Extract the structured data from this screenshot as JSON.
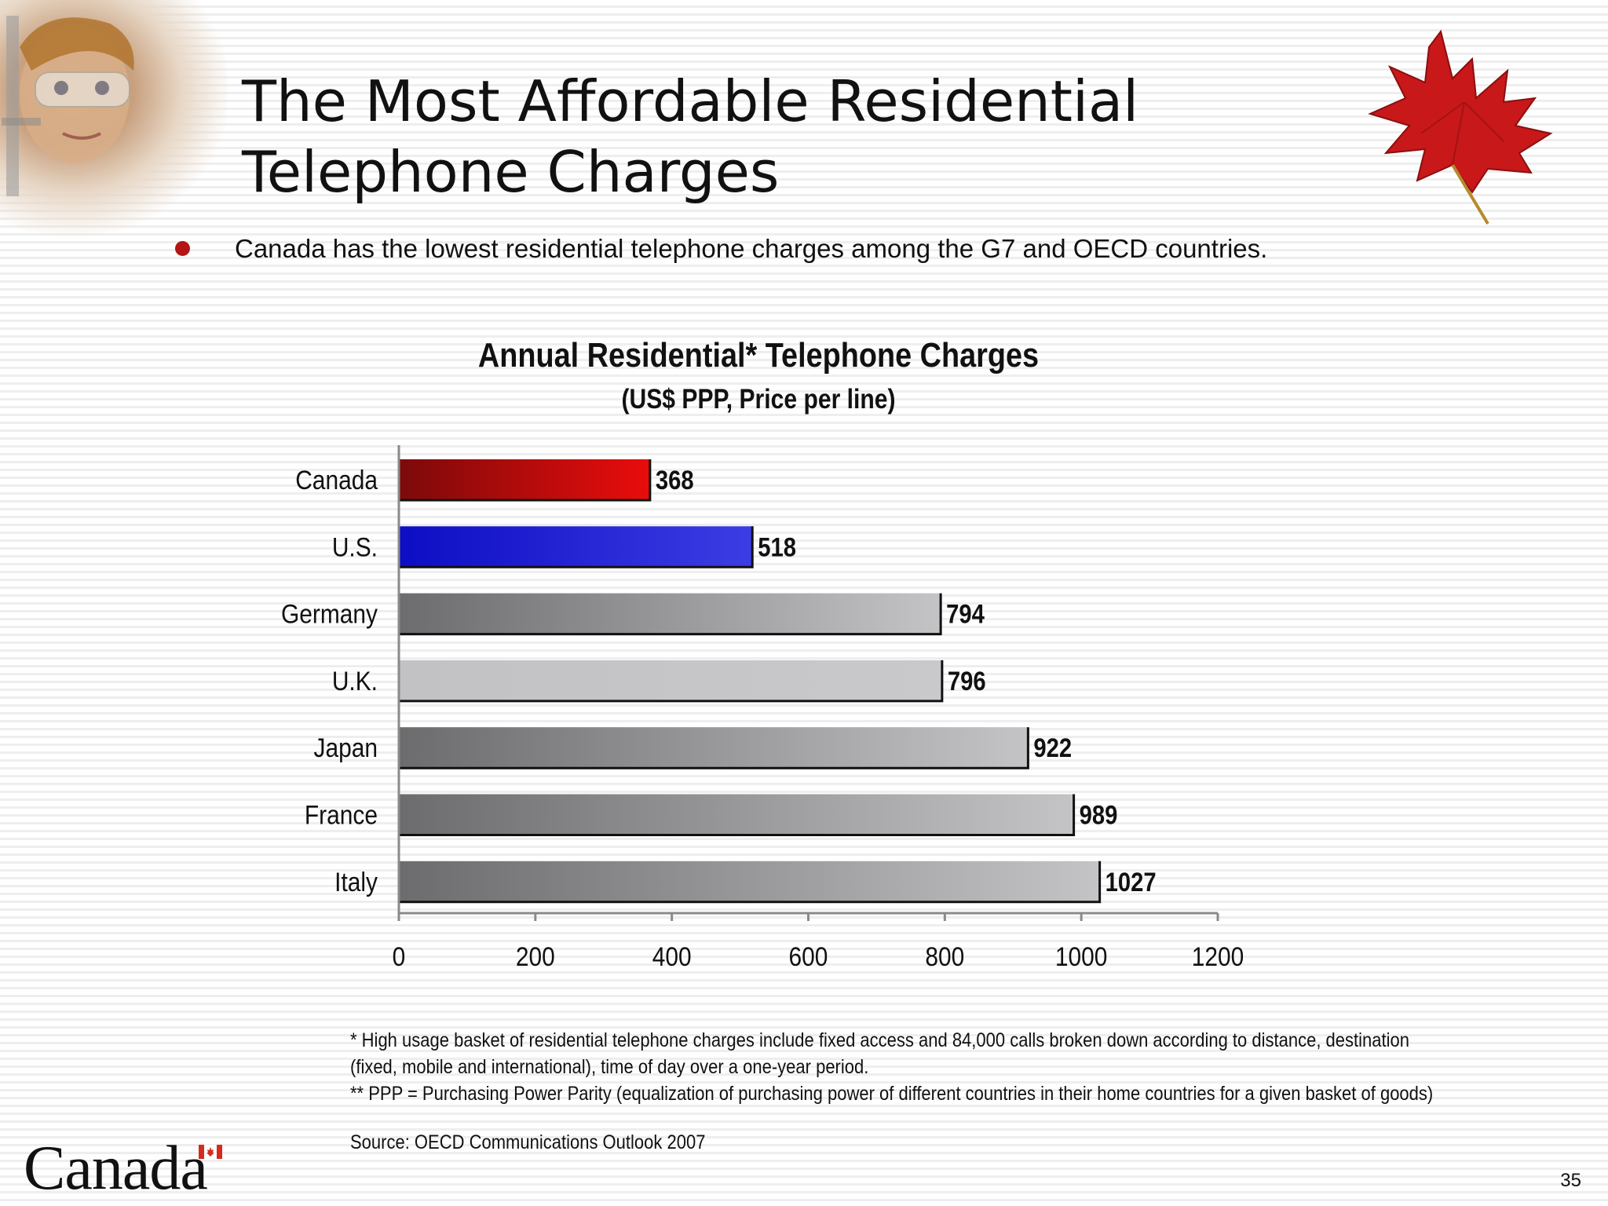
{
  "slide": {
    "title_line1": "The Most Affordable Residential",
    "title_line2": "Telephone Charges",
    "bullet": "Canada has the lowest residential telephone charges among the G7 and OECD countries.",
    "page_number": "35",
    "wordmark": "Canada",
    "photo_icon": "scientist-photo",
    "leaf_icon": "maple-leaf-icon",
    "flag_icon": "canada-flag-icon",
    "bullet_color": "#b31515"
  },
  "chart_data": {
    "type": "bar",
    "orientation": "horizontal",
    "title": "Annual Residential* Telephone Charges",
    "subtitle": "(US$ PPP, Price per line)",
    "categories": [
      "Canada",
      "U.S.",
      "Germany",
      "U.K.",
      "Japan",
      "France",
      "Italy"
    ],
    "values": [
      368,
      518,
      794,
      796,
      922,
      989,
      1027
    ],
    "value_labels": [
      "368",
      "518",
      "794",
      "796",
      "922",
      "989",
      "1027"
    ],
    "bar_colors": [
      "#d40808",
      "#2323d8",
      "#8c8c8e",
      "#c6c6c8",
      "#8c8c8e",
      "#8c8c8e",
      "#8c8c8e"
    ],
    "xlim": [
      0,
      1200
    ],
    "xticks": [
      0,
      200,
      400,
      600,
      800,
      1000,
      1200
    ],
    "xtick_labels": [
      "0",
      "200",
      "400",
      "600",
      "800",
      "1000",
      "1200"
    ],
    "grid": false,
    "legend": "none"
  },
  "footnotes": {
    "line1": " * High usage basket of residential telephone charges include fixed access and 84,000 calls broken down according to distance, destination",
    "line2": "(fixed, mobile and international), time of day over a one-year period.",
    "line3": "** PPP = Purchasing Power Parity (equalization of purchasing power of different countries in their home countries for a given basket of goods)",
    "source": "Source: OECD Communications Outlook 2007"
  }
}
